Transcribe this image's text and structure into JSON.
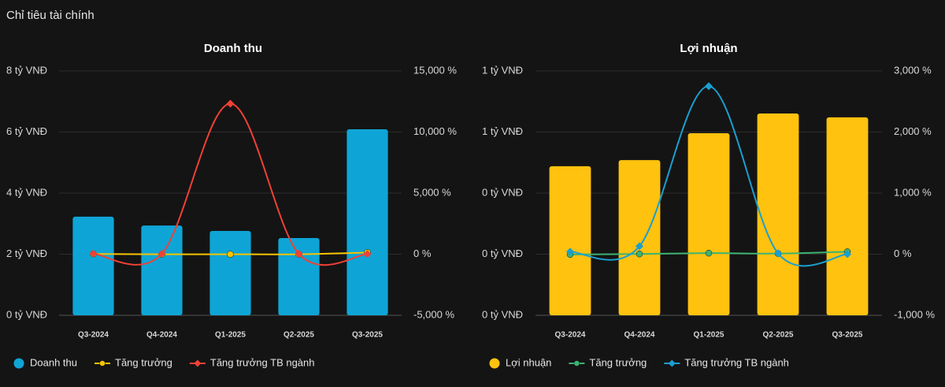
{
  "header": {
    "title": "Chỉ tiêu tài chính"
  },
  "chart_data": [
    {
      "type": "bar",
      "title": "Doanh thu",
      "categories": [
        "Q3-2024",
        "Q4-2024",
        "Q1-2025",
        "Q2-2025",
        "Q3-2025"
      ],
      "series": [
        {
          "name": "Doanh thu",
          "type": "bar",
          "color": "#0ea5d6",
          "values": [
            3.23,
            2.94,
            2.76,
            2.53,
            6.09
          ]
        },
        {
          "name": "Tăng trưởng",
          "type": "line",
          "axis": "y2",
          "color": "#f5c400",
          "marker": "circle",
          "values": [
            20,
            -9,
            -6,
            -8,
            137
          ]
        },
        {
          "name": "Tăng trưởng TB ngành",
          "type": "line",
          "axis": "y2",
          "color": "#ef4136",
          "marker": "diamond",
          "values": [
            50,
            40,
            12320,
            30,
            20
          ]
        }
      ],
      "ylim": [
        0,
        8
      ],
      "yticks": [
        {
          "value": 0,
          "label": "0 tỷ VNĐ"
        },
        {
          "value": 2,
          "label": "2 tỷ VNĐ"
        },
        {
          "value": 4,
          "label": "4 tỷ VNĐ"
        },
        {
          "value": 6,
          "label": "6 tỷ VNĐ"
        },
        {
          "value": 8,
          "label": "8 tỷ VNĐ"
        }
      ],
      "y2lim": [
        -5000,
        15000
      ],
      "y2ticks": [
        {
          "value": -5000,
          "label": "-5,000 %"
        },
        {
          "value": 0,
          "label": "0 %"
        },
        {
          "value": 5000,
          "label": "5,000 %"
        },
        {
          "value": 10000,
          "label": "10,000 %"
        },
        {
          "value": 15000,
          "label": "15,000 %"
        }
      ],
      "grid": true
    },
    {
      "type": "bar",
      "title": "Lợi nhuận",
      "categories": [
        "Q3-2024",
        "Q4-2024",
        "Q1-2025",
        "Q2-2025",
        "Q3-2025"
      ],
      "series": [
        {
          "name": "Lợi nhuận",
          "type": "bar",
          "color": "#ffc20e",
          "values": [
            0.61,
            0.635,
            0.745,
            0.826,
            0.81
          ]
        },
        {
          "name": "Tăng trưởng",
          "type": "line",
          "axis": "y2",
          "color": "#3cb371",
          "marker": "circle",
          "values": [
            -5,
            4,
            17,
            11,
            40
          ]
        },
        {
          "name": "Tăng trưởng TB ngành",
          "type": "line",
          "axis": "y2",
          "color": "#1a9fd0",
          "marker": "diamond",
          "values": [
            40,
            130,
            2750,
            15,
            0
          ]
        }
      ],
      "ylim": [
        0,
        1
      ],
      "yticks": [
        {
          "value": 0,
          "label": "0 tỷ VNĐ"
        },
        {
          "value": 0.25,
          "label": "0 tỷ VNĐ"
        },
        {
          "value": 0.5,
          "label": "0 tỷ VNĐ"
        },
        {
          "value": 0.75,
          "label": "1 tỷ VNĐ"
        },
        {
          "value": 1,
          "label": "1 tỷ VNĐ"
        }
      ],
      "y2lim": [
        -1000,
        3000
      ],
      "y2ticks": [
        {
          "value": -1000,
          "label": "-1,000 %"
        },
        {
          "value": 0,
          "label": "0 %"
        },
        {
          "value": 1000,
          "label": "1,000 %"
        },
        {
          "value": 2000,
          "label": "2,000 %"
        },
        {
          "value": 3000,
          "label": "3,000 %"
        }
      ],
      "grid": true
    }
  ]
}
